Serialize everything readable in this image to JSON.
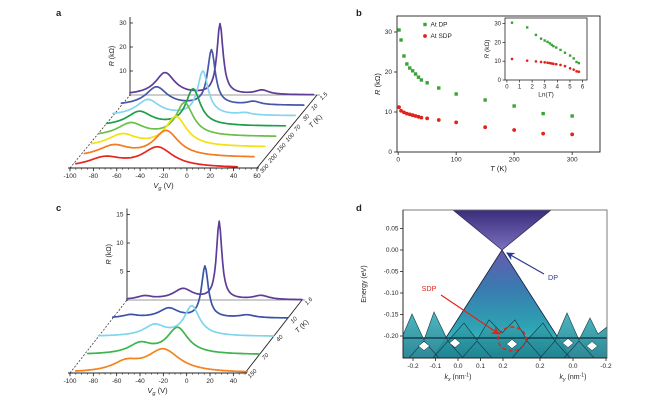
{
  "figure": {
    "background": "#ffffff",
    "text_color": "#231f20",
    "panel_labels": {
      "a": "a",
      "b": "b",
      "c": "c",
      "d": "d"
    }
  },
  "chart_data": [
    {
      "id": "a",
      "type": "line",
      "variant": "waterfall3d",
      "xlabel": {
        "parts": [
          {
            "t": "V",
            "i": 1
          },
          {
            "t": "g",
            "sub": 1,
            "i": 1
          },
          {
            "t": " (V)"
          }
        ]
      },
      "ylabel": {
        "parts": [
          {
            "t": "R",
            "i": 1
          },
          {
            "t": " (kΩ)"
          }
        ]
      },
      "zlabel": {
        "parts": [
          {
            "t": "T",
            "i": 1
          },
          {
            "t": " (K)"
          }
        ]
      },
      "xlim": [
        -100,
        60
      ],
      "ylim": [
        0,
        30
      ],
      "x_ticks": [
        -100,
        -80,
        -60,
        -40,
        -20,
        0,
        20,
        40,
        60
      ],
      "y_ticks": [
        10,
        20,
        30
      ],
      "series": [
        {
          "temperature": "300",
          "color": "#e8251c",
          "vg_range": [
            -95,
            43
          ],
          "peaks": [
            {
              "vg": -25,
              "r": 8.3,
              "w": 16
            },
            {
              "vg": -70,
              "r": 4.0,
              "w": 18
            }
          ]
        },
        {
          "temperature": "200",
          "color": "#f47b20",
          "vg_range": [
            -95,
            50
          ],
          "peaks": [
            {
              "vg": -25,
              "r": 10.8,
              "w": 13
            },
            {
              "vg": -70,
              "r": 4.6,
              "w": 16
            }
          ]
        },
        {
          "temperature": "150",
          "color": "#f2e20d",
          "vg_range": [
            -96,
            52
          ],
          "peaks": [
            {
              "vg": -24,
              "r": 12.4,
              "w": 11
            },
            {
              "vg": -70,
              "r": 5.0,
              "w": 15
            }
          ]
        },
        {
          "temperature": "100",
          "color": "#6abf4b",
          "vg_range": [
            -97,
            54
          ],
          "peaks": [
            {
              "vg": -24,
              "r": 13.8,
              "w": 9
            },
            {
              "vg": -70,
              "r": 5.4,
              "w": 14
            }
          ]
        },
        {
          "temperature": "70",
          "color": "#1f9d49",
          "vg_range": [
            -98,
            55
          ],
          "peaks": [
            {
              "vg": -24,
              "r": 15.2,
              "w": 7.5
            },
            {
              "vg": -70,
              "r": 5.9,
              "w": 13
            }
          ]
        },
        {
          "temperature": "30",
          "color": "#84d5ee",
          "vg_range": [
            -100,
            56
          ],
          "peaks": [
            {
              "vg": -23,
              "r": 18.3,
              "w": 5.5
            },
            {
              "vg": -70,
              "r": 6.6,
              "w": 12
            },
            {
              "vg": 13,
              "r": 0.9,
              "w": 7
            }
          ]
        },
        {
          "temperature": "10",
          "color": "#4757a7",
          "vg_range": [
            -100,
            56
          ],
          "peaks": [
            {
              "vg": -23,
              "r": 22.8,
              "w": 4
            },
            {
              "vg": -70,
              "r": 7.6,
              "w": 11
            },
            {
              "vg": 13,
              "r": 1.4,
              "w": 7
            }
          ]
        },
        {
          "temperature": "1.5",
          "color": "#5e3c98",
          "vg_range": [
            -100,
            57
          ],
          "peaks": [
            {
              "vg": -23,
              "r": 29.3,
              "w": 3.2
            },
            {
              "vg": -70,
              "r": 9.2,
              "w": 10
            },
            {
              "vg": 13,
              "r": 1.8,
              "w": 7
            }
          ]
        }
      ]
    },
    {
      "id": "b",
      "type": "scatter",
      "xlabel": {
        "parts": [
          {
            "t": "T",
            "i": 1
          },
          {
            "t": " (K)"
          }
        ]
      },
      "ylabel": {
        "parts": [
          {
            "t": "R",
            "i": 1
          },
          {
            "t": " (kΩ)"
          }
        ]
      },
      "xlim": [
        -2,
        348
      ],
      "ylim": [
        0,
        34
      ],
      "x_ticks": [
        0,
        100,
        200,
        300
      ],
      "y_ticks": [
        0,
        10,
        20,
        30
      ],
      "legend": [
        {
          "label": "At DP",
          "color": "#3aa335",
          "marker": "square"
        },
        {
          "label": "At SDP",
          "color": "#e2231a",
          "marker": "circle"
        }
      ],
      "T": [
        1.5,
        5,
        10,
        15,
        20,
        25,
        30,
        35,
        40,
        50,
        70,
        100,
        150,
        200,
        250,
        300
      ],
      "series": [
        {
          "name": "At DP",
          "color": "#3aa335",
          "marker": "square",
          "R": [
            30.5,
            28,
            24,
            22,
            21,
            20.3,
            19.5,
            18.7,
            18,
            17.3,
            16,
            14.5,
            13,
            11.5,
            9.6,
            9
          ]
        },
        {
          "name": "At SDP",
          "color": "#e2231a",
          "marker": "circle",
          "R": [
            11.2,
            10.3,
            9.9,
            9.6,
            9.4,
            9.2,
            9,
            8.8,
            8.6,
            8.4,
            8,
            7.4,
            6.2,
            5.5,
            4.6,
            4.4
          ]
        }
      ],
      "inset": {
        "xlabel": {
          "parts": [
            {
              "t": "Ln("
            },
            {
              "t": "T",
              "i": 1
            },
            {
              "t": ")"
            }
          ]
        },
        "ylabel": {
          "parts": [
            {
              "t": "R",
              "i": 1
            },
            {
              "t": " (kΩ)"
            }
          ]
        },
        "xlim": [
          -0.15,
          6.35
        ],
        "ylim": [
          0,
          33
        ],
        "x_ticks": [
          0,
          1,
          2,
          3,
          4,
          5,
          6
        ],
        "y_ticks": [
          0,
          10,
          20,
          30
        ],
        "x_is_natural_log_of_T": true
      }
    },
    {
      "id": "c",
      "type": "line",
      "variant": "waterfall3d",
      "xlabel": {
        "parts": [
          {
            "t": "V",
            "i": 1
          },
          {
            "t": "g",
            "sub": 1,
            "i": 1
          },
          {
            "t": " (V)"
          }
        ]
      },
      "ylabel": {
        "parts": [
          {
            "t": "R",
            "i": 1
          },
          {
            "t": " (kΩ)"
          }
        ]
      },
      "zlabel": {
        "parts": [
          {
            "t": "T",
            "i": 1
          },
          {
            "t": " (K)"
          }
        ]
      },
      "xlim": [
        -100,
        50
      ],
      "ylim": [
        0,
        15
      ],
      "x_ticks": [
        -100,
        -80,
        -60,
        -40,
        -20,
        0,
        20,
        40
      ],
      "y_ticks": [
        5,
        10,
        15
      ],
      "series": [
        {
          "temperature": "150",
          "color": "#f5821f",
          "vg_range": [
            -95,
            52
          ],
          "peaks": [
            {
              "vg": -20,
              "r": 4.0,
              "w": 17
            },
            {
              "vg": -52,
              "r": 1.6,
              "w": 14
            }
          ]
        },
        {
          "temperature": "70",
          "color": "#3db54a",
          "vg_range": [
            -97,
            50
          ],
          "peaks": [
            {
              "vg": -20,
              "r": 4.6,
              "w": 11
            },
            {
              "vg": -52,
              "r": 1.8,
              "w": 12
            }
          ]
        },
        {
          "temperature": "40",
          "color": "#7fd6ec",
          "vg_range": [
            -100,
            50
          ],
          "peaks": [
            {
              "vg": -20,
              "r": 5.2,
              "w": 8
            },
            {
              "vg": -52,
              "r": 1.9,
              "w": 11
            }
          ]
        },
        {
          "temperature": "10",
          "color": "#3a53a4",
          "vg_range": [
            -100,
            50
          ],
          "peaks": [
            {
              "vg": -21,
              "r": 9.0,
              "w": 3.5
            },
            {
              "vg": -52,
              "r": 1.7,
              "w": 10
            },
            {
              "vg": -85,
              "r": 0.5,
              "w": 8
            },
            {
              "vg": 15,
              "r": 0.5,
              "w": 8
            }
          ]
        },
        {
          "temperature": "1.6",
          "color": "#5e3c98",
          "vg_range": [
            -100,
            50
          ],
          "peaks": [
            {
              "vg": -21,
              "r": 13.6,
              "w": 2.8
            },
            {
              "vg": -52,
              "r": 1.9,
              "w": 10
            },
            {
              "vg": -85,
              "r": 0.6,
              "w": 8
            },
            {
              "vg": 15,
              "r": 0.7,
              "w": 8
            }
          ]
        }
      ]
    },
    {
      "id": "d",
      "type": "surface3d",
      "description": "Dirac cone band structure with satellite cones",
      "ylabel": {
        "parts": [
          {
            "t": "Energy (eV)"
          }
        ]
      },
      "xlabel_kx": {
        "parts": [
          {
            "t": "k",
            "i": 1
          },
          {
            "t": "x",
            "sub": 1,
            "i": 1
          },
          {
            "t": " (nm"
          },
          {
            "t": "-1",
            "sup": 1
          },
          {
            "t": ")"
          }
        ]
      },
      "xlabel_ky": {
        "parts": [
          {
            "t": "k",
            "i": 1
          },
          {
            "t": "y",
            "sub": 1,
            "i": 1
          },
          {
            "t": " (nm"
          },
          {
            "t": "-1",
            "sup": 1
          },
          {
            "t": ")"
          }
        ]
      },
      "energy_ticks": [
        0.05,
        0,
        -0.05,
        -0.1,
        -0.15,
        -0.2
      ],
      "kx_ticks": [
        -0.2,
        -0.1,
        0,
        0.1,
        0.2
      ],
      "ky_ticks": [
        0.2,
        0,
        -0.2
      ],
      "dp_energy": 0,
      "sdp_energy": -0.2,
      "annotations": [
        {
          "text": "DP",
          "color": "#2b3990"
        },
        {
          "text": "SDP",
          "color": "#e2231a"
        }
      ],
      "colors": {
        "cone_top": "#3a2d7c",
        "cone_mid": "#3a7ab0",
        "cone_teal": "#2da2b3",
        "satellite": "#2a97a6"
      }
    }
  ]
}
